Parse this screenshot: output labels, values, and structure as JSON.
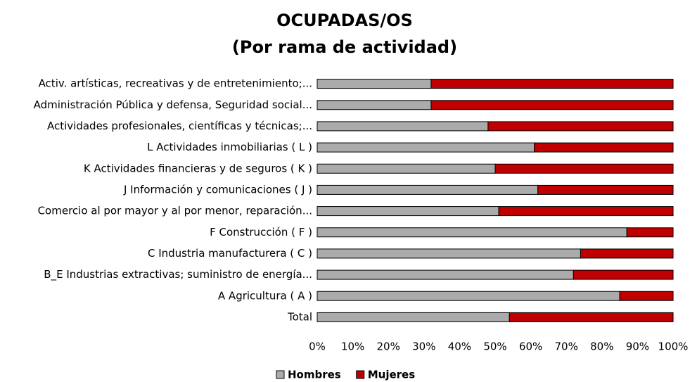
{
  "chart_data": {
    "type": "bar",
    "orientation": "horizontal",
    "stacked": true,
    "title": "OCUPADAS/OS",
    "subtitle": "(Por rama de actividad)",
    "categories": [
      "Activ. artísticas, recreativas y de entretenimiento;...",
      "Administración Pública y defensa, Seguridad social...",
      "Actividades profesionales, científicas y técnicas;...",
      "L Actividades inmobiliarias ( L )",
      "K Actividades financieras y de seguros (  K  )",
      "J Información y comunicaciones ( J )",
      "Comercio al por mayor y al por menor, reparación...",
      "F Construcción ( F )",
      "C Industria manufacturera ( C )",
      "B_E Industrias extractivas; suministro de energía...",
      "A Agricultura ( A )",
      "Total"
    ],
    "series": [
      {
        "name": "Hombres",
        "color": "#ababab",
        "values": [
          32,
          32,
          48,
          61,
          50,
          62,
          51,
          87,
          74,
          72,
          85,
          54
        ]
      },
      {
        "name": "Mujeres",
        "color": "#c00000",
        "values": [
          68,
          68,
          52,
          39,
          50,
          38,
          49,
          13,
          26,
          28,
          15,
          46
        ]
      }
    ],
    "xlim": [
      0,
      100
    ],
    "xticks": [
      {
        "value": 0,
        "label": "0%"
      },
      {
        "value": 10,
        "label": "10%"
      },
      {
        "value": 20,
        "label": "20%"
      },
      {
        "value": 30,
        "label": "30%"
      },
      {
        "value": 40,
        "label": "40%"
      },
      {
        "value": 50,
        "label": "50%"
      },
      {
        "value": 60,
        "label": "60%"
      },
      {
        "value": 70,
        "label": "70%"
      },
      {
        "value": 80,
        "label": "80%"
      },
      {
        "value": 90,
        "label": "90%"
      },
      {
        "value": 100,
        "label": "100%"
      }
    ],
    "grid": false,
    "legend": "bottom"
  }
}
